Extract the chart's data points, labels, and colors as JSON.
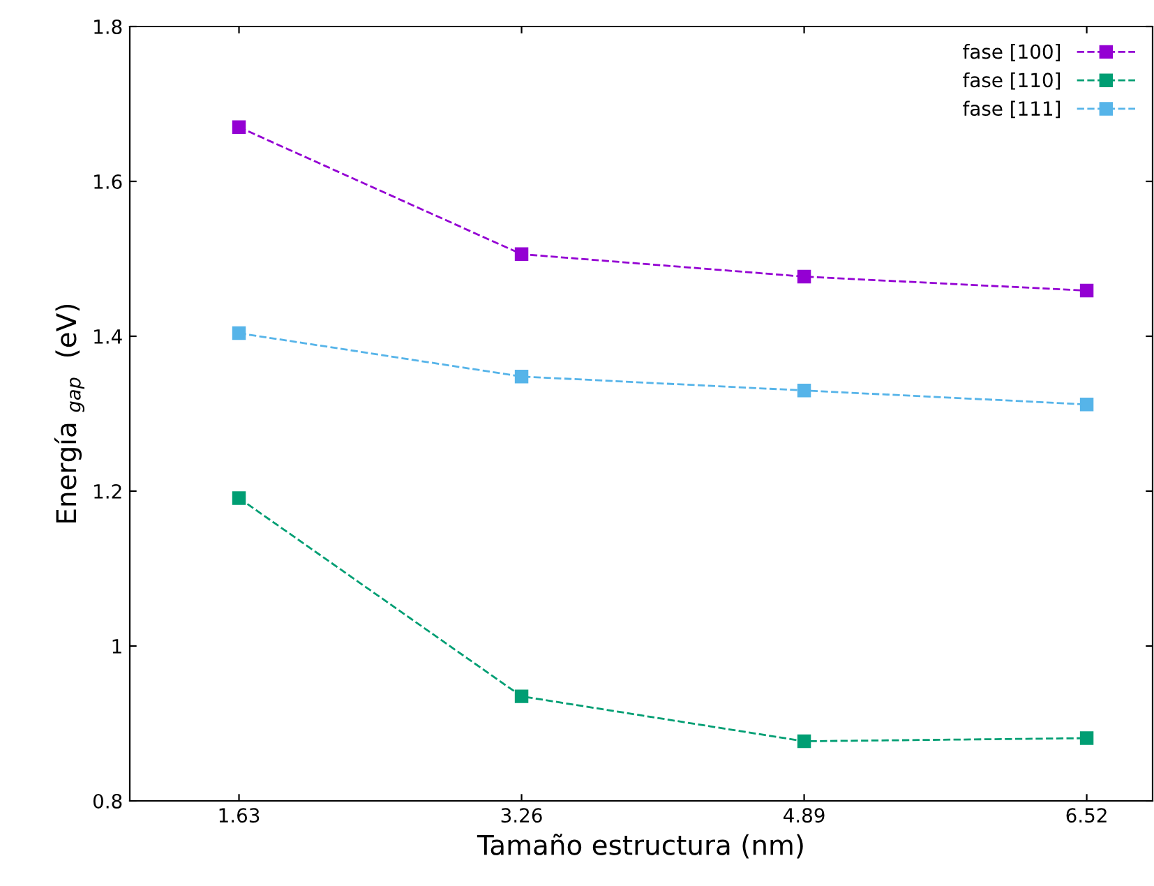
{
  "chart_data": {
    "type": "line",
    "xlabel": "Tamaño estructura (nm)",
    "ylabel": "Energía $_{gap}$  (eV)",
    "x": [
      1.63,
      3.26,
      4.89,
      6.52
    ],
    "series": [
      {
        "name": "fase [100]",
        "color": "#9400d3",
        "values": [
          1.67,
          1.506,
          1.477,
          1.459
        ]
      },
      {
        "name": "fase [110]",
        "color": "#009e73",
        "values": [
          1.191,
          0.935,
          0.877,
          0.881
        ]
      },
      {
        "name": "fase [111]",
        "color": "#56b4e9",
        "values": [
          1.404,
          1.348,
          1.33,
          1.312
        ]
      }
    ],
    "xlim": [
      1.0,
      6.9
    ],
    "xticks": [
      1.63,
      3.26,
      4.89,
      6.52
    ],
    "ylim": [
      0.8,
      1.8
    ],
    "yticks": [
      0.8,
      1,
      1.2,
      1.4,
      1.6,
      1.8
    ],
    "marker": "square",
    "line_style": "dashed",
    "legend": "top right",
    "grid": false
  }
}
